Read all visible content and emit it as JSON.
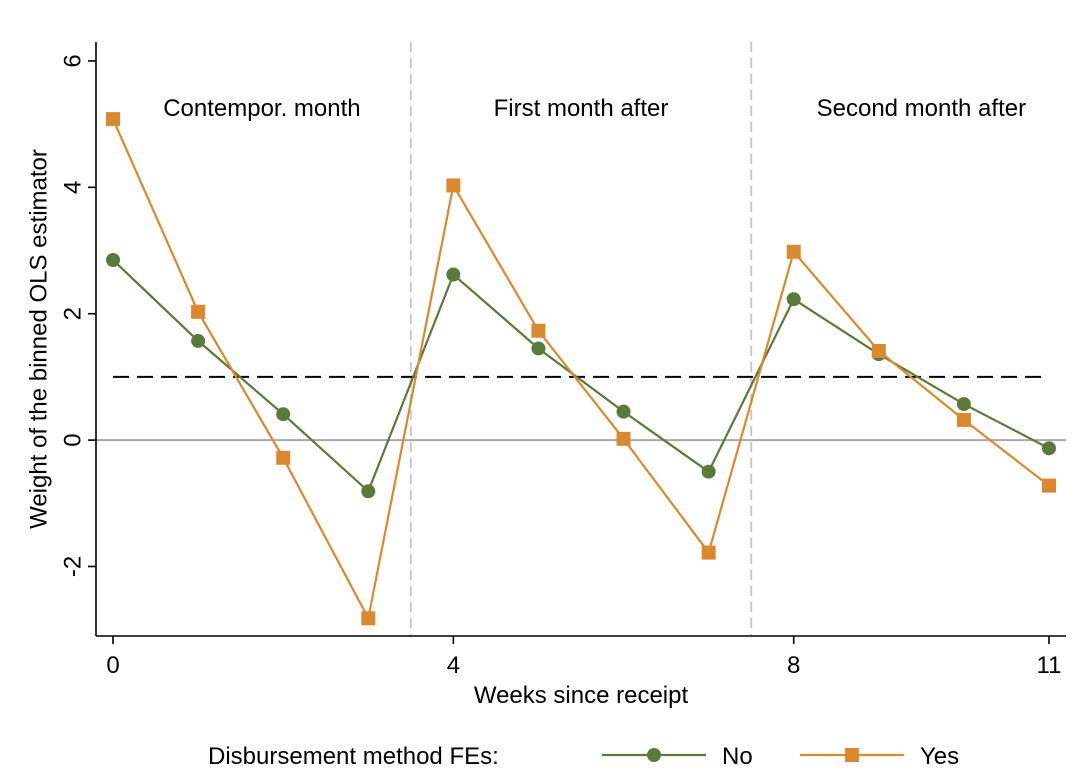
{
  "chart_data": {
    "type": "line",
    "title": "",
    "xlabel": "Weeks since receipt",
    "ylabel": "Weight of the binned OLS estimator",
    "x": [
      0,
      1,
      2,
      3,
      4,
      5,
      6,
      7,
      8,
      9,
      10,
      11
    ],
    "xlim": [
      -0.2,
      11.2
    ],
    "ylim": [
      -3.1,
      6.3
    ],
    "x_ticks": [
      0,
      4,
      8,
      11
    ],
    "x_tick_labels": [
      "0",
      "4",
      "8",
      "11"
    ],
    "y_ticks": [
      -2,
      0,
      2,
      4,
      6
    ],
    "y_tick_labels": [
      "-2",
      "0",
      "2",
      "4",
      "6"
    ],
    "series": [
      {
        "name": "No",
        "color": "#5a7a3a",
        "marker": "circle",
        "values": [
          2.85,
          1.57,
          0.41,
          -0.81,
          2.62,
          1.45,
          0.45,
          -0.5,
          2.23,
          1.36,
          0.57,
          -0.13
        ]
      },
      {
        "name": "Yes",
        "color": "#d9892f",
        "marker": "square",
        "values": [
          5.08,
          2.03,
          -0.28,
          -2.82,
          4.03,
          1.73,
          0.02,
          -1.78,
          2.98,
          1.41,
          0.32,
          -0.72
        ]
      }
    ],
    "reference_lines": {
      "horizontal_dashed": 1,
      "horizontal_solid": 0,
      "vertical_dashed": [
        3.5,
        7.5
      ]
    },
    "annotations": [
      "Contempor. month",
      "First month after",
      "Second month after"
    ],
    "legend": {
      "title": "Disbursement method FEs:",
      "entries": [
        "No",
        "Yes"
      ],
      "placement": "bottom"
    }
  }
}
